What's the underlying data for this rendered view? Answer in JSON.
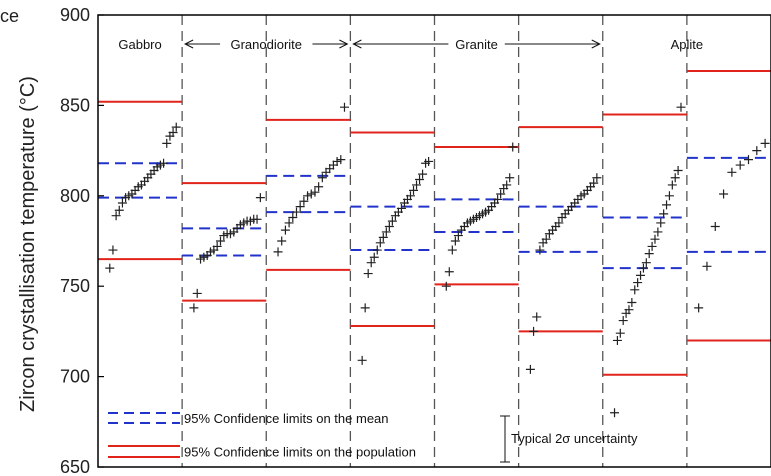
{
  "chart_data": {
    "type": "scatter",
    "ylabel": "Zircon crystallisation temperature (°C)",
    "ylim": [
      650,
      900
    ],
    "yticks": [
      650,
      700,
      750,
      800,
      850,
      900
    ],
    "xlim": [
      0,
      9
    ],
    "grid": false,
    "clipped_label": "ce",
    "groups": [
      {
        "name": "Gabbro",
        "arrow": "none"
      },
      {
        "name": "Granodiorite",
        "arrow": "both"
      },
      {
        "name": "Granite",
        "arrow": "both"
      },
      {
        "name": "Aplite",
        "arrow": "none"
      }
    ],
    "panels": [
      {
        "mean_limits": [
          799,
          818
        ],
        "population_limits": [
          765,
          852
        ],
        "points": [
          760,
          770,
          789,
          792,
          796,
          799,
          800,
          801,
          803,
          805,
          806,
          808,
          810,
          812,
          814,
          816,
          817,
          818,
          829,
          833,
          835,
          838
        ]
      },
      {
        "mean_limits": [
          767,
          782
        ],
        "population_limits": [
          742,
          807
        ],
        "points": [
          738,
          746,
          765,
          766,
          767,
          769,
          770,
          772,
          775,
          778,
          779,
          779,
          780,
          782,
          784,
          785,
          786,
          786,
          787,
          787,
          799
        ]
      },
      {
        "mean_limits": [
          791,
          811
        ],
        "population_limits": [
          759,
          842
        ],
        "points": [
          769,
          775,
          781,
          785,
          788,
          791,
          794,
          797,
          800,
          801,
          802,
          805,
          810,
          813,
          815,
          817,
          819,
          820,
          849
        ]
      },
      {
        "mean_limits": [
          770,
          794
        ],
        "population_limits": [
          728,
          835
        ],
        "points": [
          709,
          738,
          757,
          763,
          766,
          770,
          774,
          777,
          780,
          783,
          786,
          789,
          791,
          793,
          796,
          798,
          800,
          803,
          806,
          809,
          812,
          818,
          819
        ]
      },
      {
        "mean_limits": [
          780,
          798
        ],
        "population_limits": [
          751,
          827
        ],
        "points": [
          750,
          758,
          770,
          775,
          778,
          781,
          783,
          785,
          786,
          787,
          788,
          789,
          790,
          791,
          792,
          794,
          796,
          798,
          801,
          804,
          806,
          810,
          827
        ]
      },
      {
        "mean_limits": [
          769,
          794
        ],
        "population_limits": [
          725,
          838
        ],
        "points": [
          704,
          725,
          733,
          770,
          774,
          776,
          779,
          781,
          783,
          785,
          788,
          790,
          792,
          794,
          796,
          798,
          800,
          801,
          803,
          805,
          807,
          810
        ]
      },
      {
        "mean_limits": [
          760,
          788
        ],
        "population_limits": [
          701,
          845
        ],
        "points": [
          680,
          720,
          724,
          731,
          735,
          737,
          741,
          748,
          752,
          756,
          760,
          763,
          768,
          772,
          776,
          780,
          785,
          790,
          795,
          800,
          806,
          810,
          814,
          849
        ]
      },
      {
        "mean_limits": [
          769,
          821
        ],
        "population_limits": [
          720,
          869
        ],
        "points": [
          738,
          761,
          783,
          801,
          813,
          817,
          820,
          825,
          829
        ]
      }
    ],
    "legend": [
      {
        "label": "95% Confidence limits on the mean",
        "style": "dashed",
        "color": "#2233cc"
      },
      {
        "label": "95% Confidence limits on the population",
        "style": "solid",
        "color": "#e0241b"
      }
    ],
    "uncertainty_label": "Typical 2σ uncertainty",
    "colors": {
      "mean": "#2233cc",
      "population": "#e0241b",
      "points": "#222222",
      "axis": "#000000",
      "divider": "#555555"
    }
  }
}
